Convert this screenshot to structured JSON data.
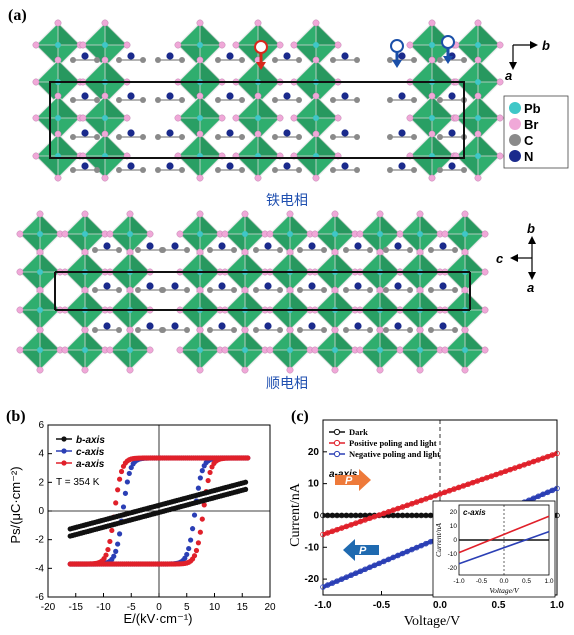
{
  "panel_a": {
    "label": "(a)",
    "ferro_caption": "铁电相",
    "para_caption": "顺电相",
    "axes_top": {
      "right": "b",
      "down": "a"
    },
    "axes_bottom": {
      "up": "b",
      "left": "c",
      "down": "a"
    },
    "legend": [
      {
        "label": "Pb",
        "color": "#3fc7c7"
      },
      {
        "label": "Br",
        "color": "#f0a8d8"
      },
      {
        "label": "C",
        "color": "#8a8a8a"
      },
      {
        "label": "N",
        "color": "#1a2a8c"
      }
    ],
    "colors": {
      "octahedron": "#2fae6e",
      "octahedron_dark": "#1e7e4e",
      "arrow_red": "#d8281c",
      "arrow_blue": "#1a4fa8"
    }
  },
  "chart_data": [
    {
      "panel": "(b)",
      "type": "line",
      "title": "",
      "xlabel": "E/(kV·cm⁻¹)",
      "ylabel": "Ps/(μC·cm⁻²)",
      "xlim": [
        -20,
        20
      ],
      "ylim": [
        -6,
        6
      ],
      "xticks": [
        -20,
        -15,
        -10,
        -5,
        0,
        5,
        10,
        15,
        20
      ],
      "yticks": [
        -6,
        -4,
        -2,
        0,
        2,
        4,
        6
      ],
      "annotation": "T = 354 K",
      "legend_placement": "top-left",
      "series": [
        {
          "name": "b-axis",
          "color": "#111111",
          "x_range": [
            -16,
            16
          ],
          "y_at_xmin": -1.5,
          "y_at_xmax": 1.8
        },
        {
          "name": "c-axis",
          "color": "#2b3fb5",
          "coercive_field": 6.5,
          "saturation": 3.7,
          "x_range": [
            -16,
            16
          ]
        },
        {
          "name": "a-axis",
          "color": "#e0202a",
          "coercive_field": 8,
          "saturation": 3.7,
          "x_range": [
            -16,
            16
          ]
        }
      ]
    },
    {
      "panel": "(c)",
      "type": "line",
      "title": "",
      "xlabel": "Voltage/V",
      "ylabel": "Current/nA",
      "xlim": [
        -1.0,
        1.0
      ],
      "ylim": [
        -25,
        30
      ],
      "xticks": [
        -1.0,
        -0.5,
        0.0,
        0.5,
        1.0
      ],
      "yticks": [
        -20,
        -10,
        0,
        10,
        20
      ],
      "annotation": "a-axis",
      "arrow_label": "P",
      "legend_placement": "top-left",
      "series": [
        {
          "name": "Dark",
          "color": "#111111",
          "x": [
            -1.0,
            1.0
          ],
          "y": [
            0,
            0
          ]
        },
        {
          "name": "Positive poling and light",
          "color": "#e0202a",
          "x": [
            -1.0,
            1.0
          ],
          "y": [
            -6,
            19.5
          ]
        },
        {
          "name": "Negative poling and light",
          "color": "#2b3fb5",
          "x": [
            -1.0,
            1.0
          ],
          "y": [
            -22.5,
            8.5
          ]
        }
      ],
      "inset": {
        "annotation": "c-axis",
        "xlabel": "Voltage/V",
        "ylabel": "Current/nA",
        "xlim": [
          -1.0,
          1.0
        ],
        "ylim": [
          -25,
          25
        ],
        "xticks": [
          -1.0,
          -0.5,
          0.0,
          0.5,
          1.0
        ],
        "yticks": [
          -20,
          -10,
          0,
          10,
          20
        ],
        "series": [
          {
            "name": "Dark",
            "color": "#111111",
            "x": [
              -1.0,
              1.0
            ],
            "y": [
              0,
              0
            ]
          },
          {
            "name": "Positive poling and light",
            "color": "#e0202a",
            "x": [
              -1.0,
              1.0
            ],
            "y": [
              -9,
              17
            ]
          },
          {
            "name": "Negative poling and light",
            "color": "#2b3fb5",
            "x": [
              -1.0,
              1.0
            ],
            "y": [
              -17,
              6
            ]
          }
        ]
      }
    }
  ]
}
